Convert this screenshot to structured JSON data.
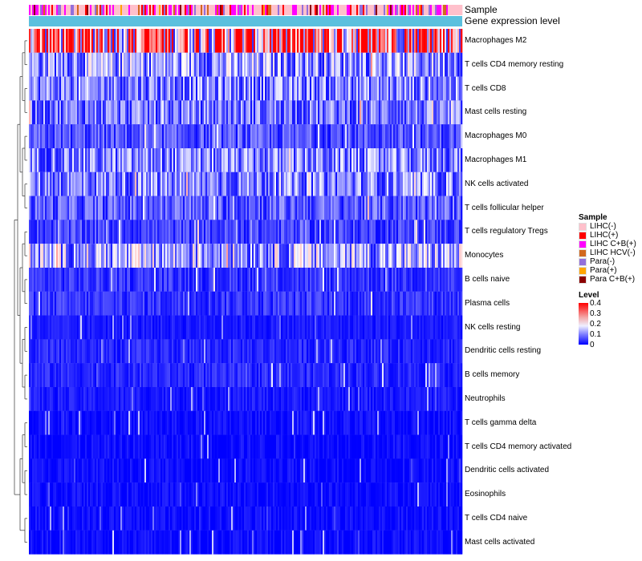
{
  "chart_data": {
    "type": "heatmap",
    "title": "",
    "annotation_tracks": [
      "Sample",
      "Gene expression level"
    ],
    "rows": [
      "Macrophages M2",
      "T cells CD4 memory resting",
      "T cells CD8",
      "Mast cells resting",
      "Macrophages M0",
      "Macrophages M1",
      "NK cells activated",
      "T cells follicular helper",
      "T cells regulatory  Tregs",
      "Monocytes",
      "B cells naive",
      "Plasma cells",
      "NK cells resting",
      "Dendritic cells resting",
      "B cells memory",
      "Neutrophils",
      "T cells gamma delta",
      "T cells CD4 memory activated",
      "Dendritic cells activated",
      "Eosinophils",
      "T cells CD4 naive",
      "Mast cells activated"
    ],
    "row_mean_levels": [
      0.3,
      0.12,
      0.1,
      0.09,
      0.06,
      0.1,
      0.1,
      0.07,
      0.05,
      0.13,
      0.04,
      0.04,
      0.02,
      0.03,
      0.03,
      0.02,
      0.01,
      0.01,
      0.01,
      0.01,
      0.01,
      0.01
    ],
    "n_samples": 270,
    "color_scale": {
      "min": 0,
      "max": 0.4,
      "stops": [
        "#0000ff",
        "#ffffff",
        "#ff0000"
      ]
    }
  },
  "legend": {
    "sample": {
      "title": "Sample",
      "items": [
        {
          "label": "LIHC(-)",
          "color": "#ffc0cb"
        },
        {
          "label": "LIHC(+)",
          "color": "#ff0000"
        },
        {
          "label": "LIHC C+B(+)",
          "color": "#ff00ff"
        },
        {
          "label": "LIHC HCV(-)",
          "color": "#d2691e"
        },
        {
          "label": "Para(-)",
          "color": "#9370db"
        },
        {
          "label": "Para(+)",
          "color": "#ffa500"
        },
        {
          "label": "Para C+B(+)",
          "color": "#8b0000"
        }
      ]
    },
    "level": {
      "title": "Level",
      "ticks": [
        "0.4",
        "0.3",
        "0.2",
        "0.1",
        "0"
      ]
    }
  },
  "labels": {
    "sample_track": "Sample",
    "gene_track": "Gene expression level"
  },
  "gene_track_color": "#5bc0de"
}
